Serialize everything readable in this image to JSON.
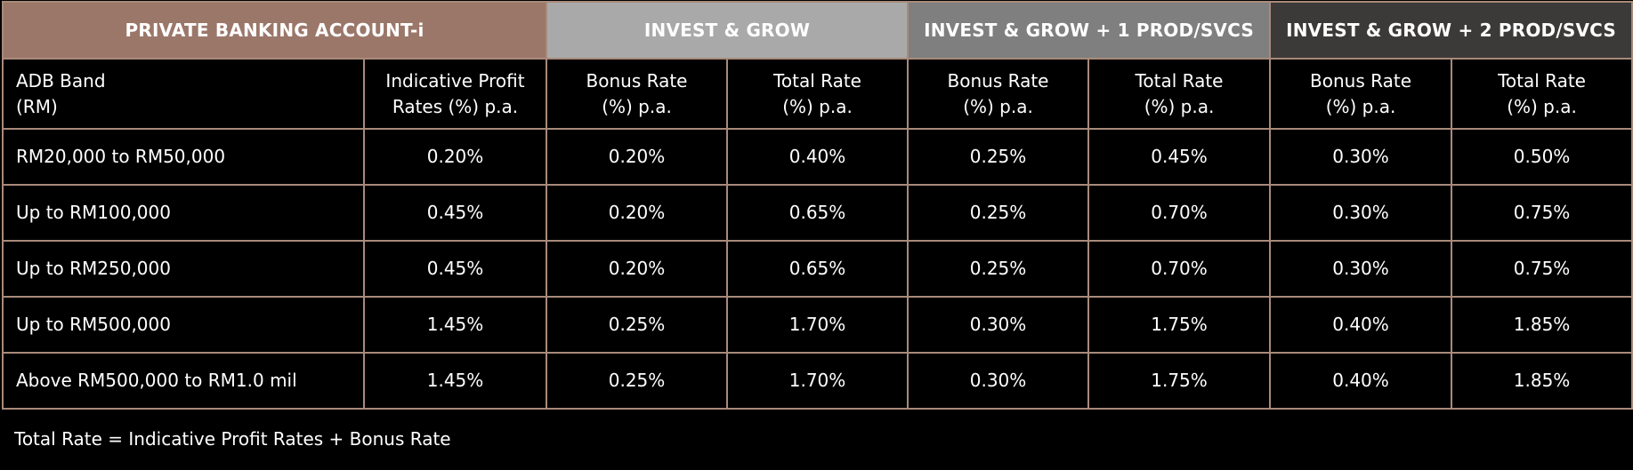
{
  "groups": {
    "pba": "PRIVATE BANKING ACCOUNT-i",
    "ig": "INVEST & GROW",
    "ig1": "INVEST & GROW + 1 PROD/SVCS",
    "ig2": "INVEST & GROW + 2 PROD/SVCS"
  },
  "columns": {
    "adb_band": [
      "ADB Band",
      "(RM)"
    ],
    "indicative": [
      "Indicative Profit",
      "Rates (%) p.a."
    ],
    "bonus": [
      "Bonus Rate",
      "(%) p.a."
    ],
    "total": [
      "Total Rate",
      "(%) p.a."
    ]
  },
  "rows": [
    [
      "RM20,000 to RM50,000",
      "0.20%",
      "0.20%",
      "0.40%",
      "0.25%",
      "0.45%",
      "0.30%",
      "0.50%"
    ],
    [
      "Up to RM100,000",
      "0.45%",
      "0.20%",
      "0.65%",
      "0.25%",
      "0.70%",
      "0.30%",
      "0.75%"
    ],
    [
      "Up to RM250,000",
      "0.45%",
      "0.20%",
      "0.65%",
      "0.25%",
      "0.70%",
      "0.30%",
      "0.75%"
    ],
    [
      "Up to RM500,000",
      "1.45%",
      "0.25%",
      "1.70%",
      "0.30%",
      "1.75%",
      "0.40%",
      "1.85%"
    ],
    [
      "Above RM500,000 to RM1.0 mil",
      "1.45%",
      "0.25%",
      "1.70%",
      "0.30%",
      "1.75%",
      "0.40%",
      "1.85%"
    ]
  ],
  "footnote": "Total Rate = Indicative Profit Rates + Bonus Rate",
  "colors": {
    "background": "#000000",
    "border": "#a88a7a",
    "pba_header": "#9b776a",
    "ig_header": "#a9a9a9",
    "ig1_header": "#7f7f7f",
    "ig2_header": "#3c3a39"
  }
}
